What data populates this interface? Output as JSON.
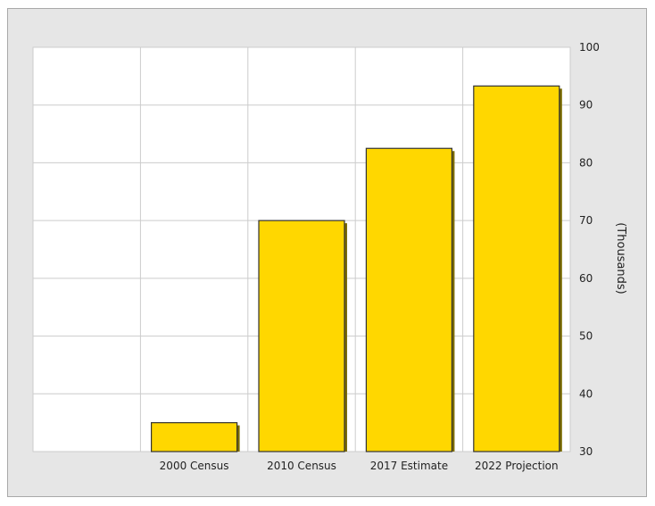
{
  "chart_data": {
    "type": "bar",
    "categories": [
      "2000 Census",
      "2010 Census",
      "2017 Estimate",
      "2022 Projection"
    ],
    "values": [
      35,
      70,
      82.5,
      93.3
    ],
    "title": "",
    "xlabel": "",
    "ylabel": "(Thousands)",
    "ylim": [
      30,
      100
    ],
    "yticks": [
      100,
      90,
      80,
      70,
      60,
      50,
      40,
      30
    ],
    "grid": true,
    "y_axis_side": "right",
    "colors": {
      "bar_fill": "#ffd700",
      "bar_border": "#333333",
      "bar_shadow": "#7a6a00",
      "plot_bg": "#ffffff",
      "frame_bg": "#e6e6e6",
      "grid": "#cccccc"
    }
  }
}
